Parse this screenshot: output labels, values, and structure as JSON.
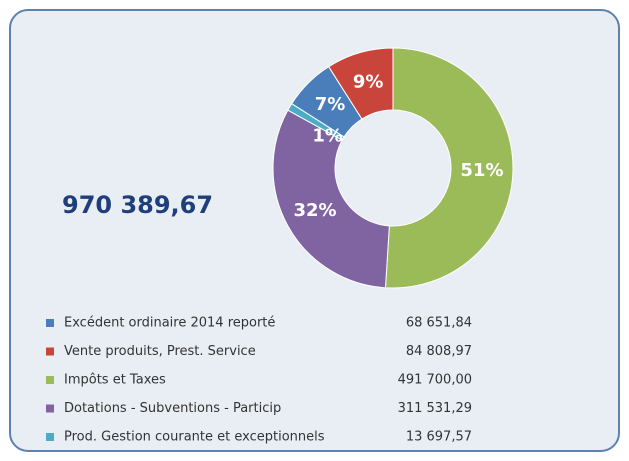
{
  "chart_data": {
    "type": "pie",
    "donut": true,
    "total": "970 389,67",
    "categories": [
      "Excédent ordinaire 2014 reporté",
      "Vente produits, Prest. Service",
      "Impôts et Taxes",
      "Dotations - Subventions - Particip",
      "Prod. Gestion courante et exceptionnels"
    ],
    "values": [
      7,
      9,
      51,
      32,
      1
    ],
    "value_labels": [
      "7%",
      "9%",
      "51%",
      "32%",
      "1%"
    ],
    "amounts": [
      "68 651,84",
      "84 808,97",
      "491 700,00",
      "311 531,29",
      "13 697,57"
    ],
    "colors": [
      "#4a7ebb",
      "#c9453b",
      "#9bbb59",
      "#8064a2",
      "#4bacc6"
    ]
  }
}
